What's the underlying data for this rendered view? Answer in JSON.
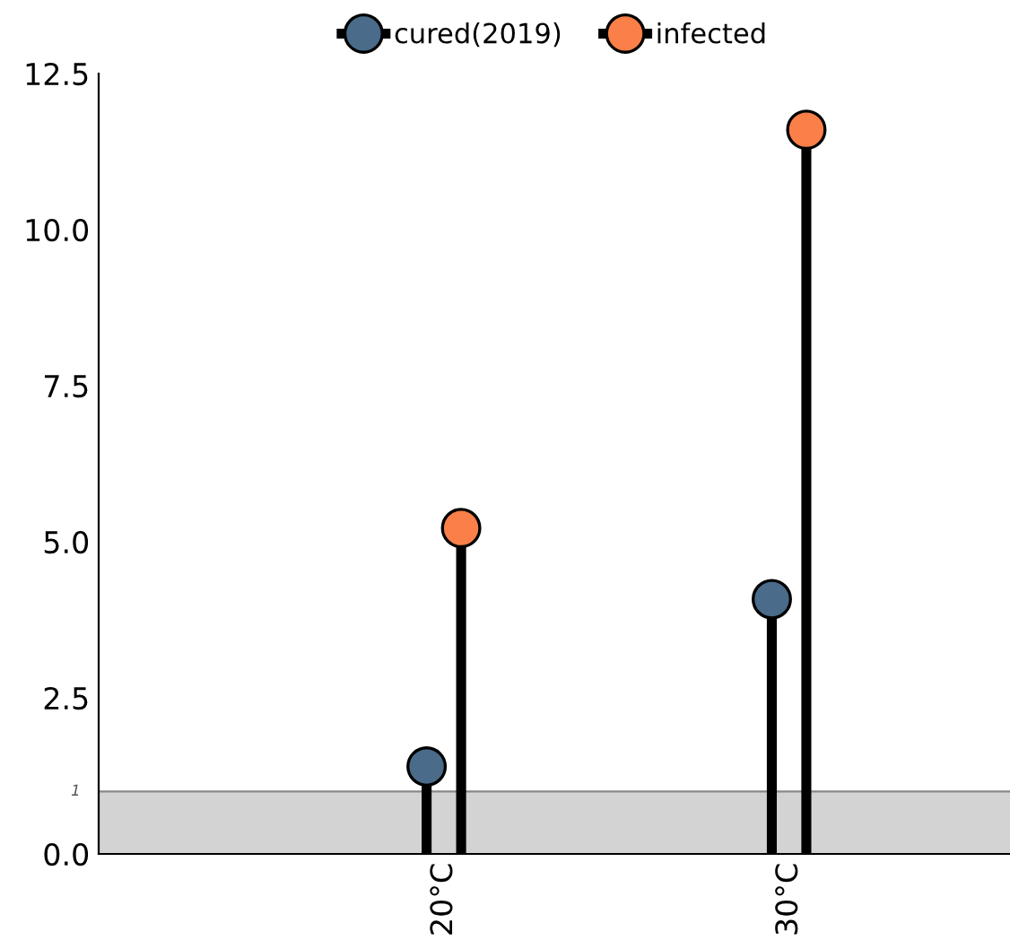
{
  "chart_data": {
    "type": "lollipop",
    "categories": [
      "20°C",
      "30°C"
    ],
    "series": [
      {
        "name": "cured(2019)",
        "color": "#4a6b8a",
        "values": [
          1.4,
          4.08
        ]
      },
      {
        "name": "infected",
        "color": "#fa7f48",
        "values": [
          5.22,
          11.6
        ]
      }
    ],
    "ylim": [
      0,
      12.5
    ],
    "yticks": [
      {
        "value": 0,
        "label": "0.0"
      },
      2.5,
      {
        "value": 5,
        "label": "5.0"
      },
      7.5,
      {
        "value": 10,
        "label": "10.0"
      },
      12.5
    ],
    "bands": [
      {
        "axis": "y",
        "from": 0,
        "to": 1,
        "color": "#d3d3d3"
      }
    ],
    "ref_lines": [
      {
        "axis": "y",
        "value": 1,
        "label": "1",
        "color": "#888888"
      }
    ],
    "legend": "top",
    "grid": false,
    "marker": "circle"
  }
}
